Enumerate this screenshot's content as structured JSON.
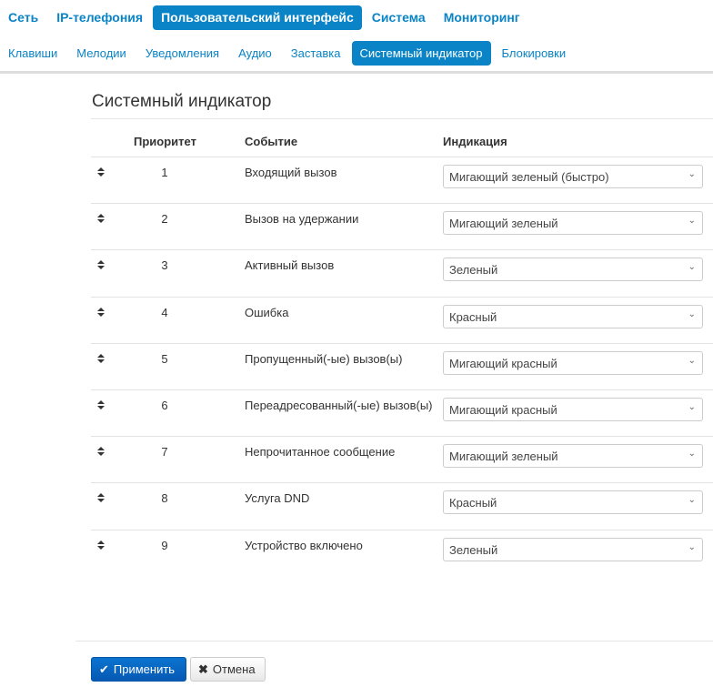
{
  "nav": {
    "items": [
      "Сеть",
      "IP-телефония",
      "Пользовательский интерфейс",
      "Система",
      "Мониторинг"
    ],
    "active": 2
  },
  "subnav": {
    "items": [
      "Клавиши",
      "Мелодии",
      "Уведомления",
      "Аудио",
      "Заставка",
      "Системный индикатор",
      "Блокировки"
    ],
    "active": 5
  },
  "page": {
    "title": "Системный индикатор"
  },
  "table": {
    "headers": {
      "priority": "Приоритет",
      "event": "Событие",
      "indication": "Индикация"
    },
    "rows": [
      {
        "priority": "1",
        "event": "Входящий вызов",
        "indication": "Мигающий зеленый (быстро)"
      },
      {
        "priority": "2",
        "event": "Вызов на удержании",
        "indication": "Мигающий зеленый"
      },
      {
        "priority": "3",
        "event": "Активный вызов",
        "indication": "Зеленый"
      },
      {
        "priority": "4",
        "event": "Ошибка",
        "indication": "Красный"
      },
      {
        "priority": "5",
        "event": "Пропущенный(-ые) вызов(ы)",
        "indication": "Мигающий красный"
      },
      {
        "priority": "6",
        "event": "Переадресованный(-ые) вызов(ы)",
        "indication": "Мигающий красный"
      },
      {
        "priority": "7",
        "event": "Непрочитанное сообщение",
        "indication": "Мигающий зеленый"
      },
      {
        "priority": "8",
        "event": "Услуга DND",
        "indication": "Красный"
      },
      {
        "priority": "9",
        "event": "Устройство включено",
        "indication": "Зеленый"
      }
    ]
  },
  "footer": {
    "apply": "Применить",
    "cancel": "Отмена"
  },
  "colors": {
    "accent": "#0a84c6",
    "apply": "#0659b3"
  }
}
